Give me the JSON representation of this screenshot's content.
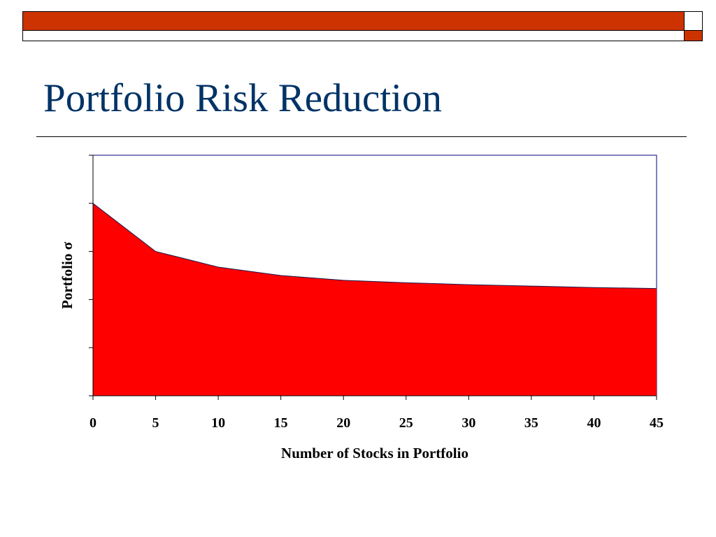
{
  "slide": {
    "title": "Portfolio Risk Reduction",
    "colors": {
      "title": "#003366",
      "accent_bar": "#cc3300"
    }
  },
  "chart_data": {
    "type": "area",
    "x": [
      0,
      5,
      10,
      15,
      20,
      25,
      30,
      35,
      40,
      45
    ],
    "xticks": [
      0,
      5,
      10,
      15,
      20,
      25,
      30,
      35,
      40,
      45
    ],
    "y": [
      80,
      60,
      53.5,
      50,
      48,
      47,
      46.2,
      45.6,
      45,
      44.6
    ],
    "xlim": [
      0,
      45
    ],
    "ylim": [
      0,
      100
    ],
    "y_tick_count": 6,
    "y_tick_labels_shown": false,
    "xlabel": "Number of Stocks in Portfolio",
    "ylabel": "Portfolio σ",
    "fill_color": "#ff0000",
    "grid": false,
    "legend": false
  }
}
